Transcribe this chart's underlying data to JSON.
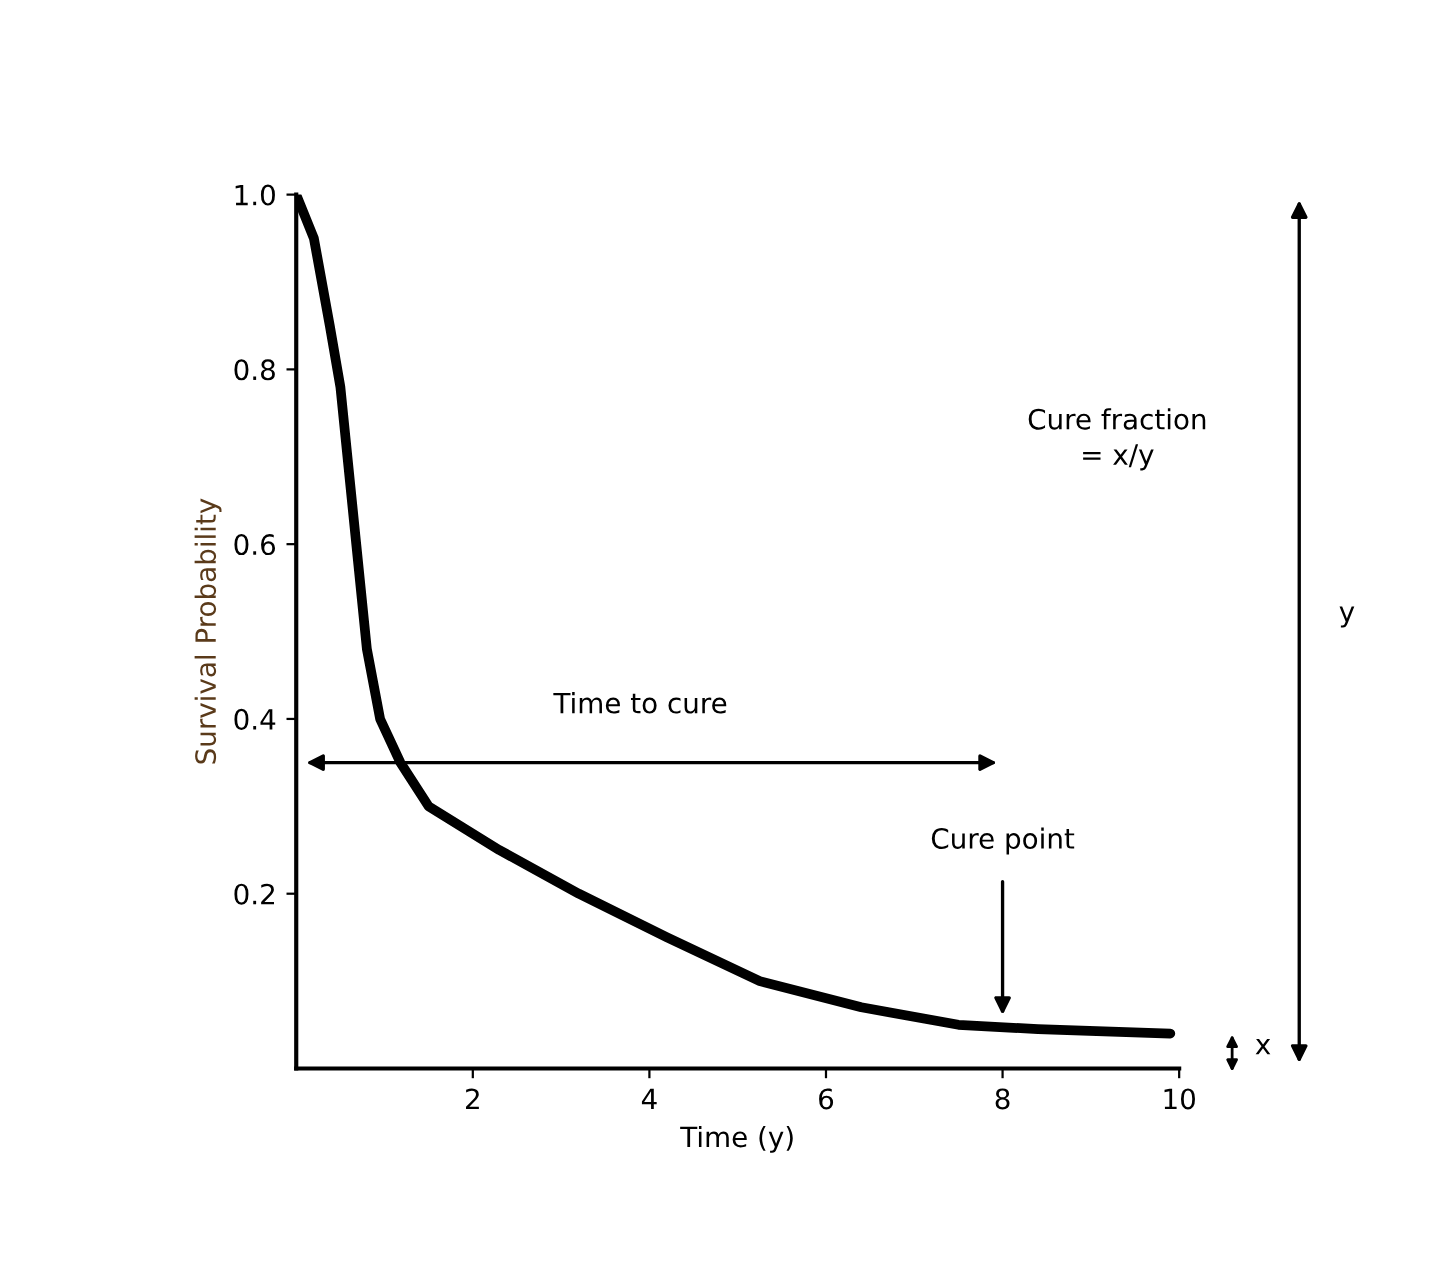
{
  "chart_data": {
    "type": "line",
    "xlabel": "Time (y)",
    "ylabel": "Survival Probability",
    "x": [
      0,
      0.2,
      0.38,
      0.5,
      0.68,
      0.8,
      0.95,
      1.18,
      1.5,
      2.3,
      3.2,
      4.2,
      5.25,
      6.4,
      7.5,
      8.4,
      9.9
    ],
    "series": [
      {
        "color": "#000000",
        "values": [
          1.0,
          0.95,
          0.85,
          0.78,
          0.6,
          0.48,
          0.4,
          0.35,
          0.3,
          0.25,
          0.2,
          0.15,
          0.1,
          0.07,
          0.05,
          0.045,
          0.04
        ]
      }
    ],
    "xlim": [
      0,
      10
    ],
    "ylim": [
      0,
      1.0
    ],
    "xticks": [
      2,
      4,
      6,
      8,
      10
    ],
    "yticks": [
      0.2,
      0.4,
      0.6,
      0.8,
      {
        "value": 1,
        "label": "1.0"
      }
    ],
    "grid": false,
    "legend": false,
    "marker": "none",
    "line_style": "solid",
    "annotations": [
      "Time to cure",
      "Cure point",
      "Cure fraction\n= x/y",
      "y",
      "x"
    ]
  }
}
